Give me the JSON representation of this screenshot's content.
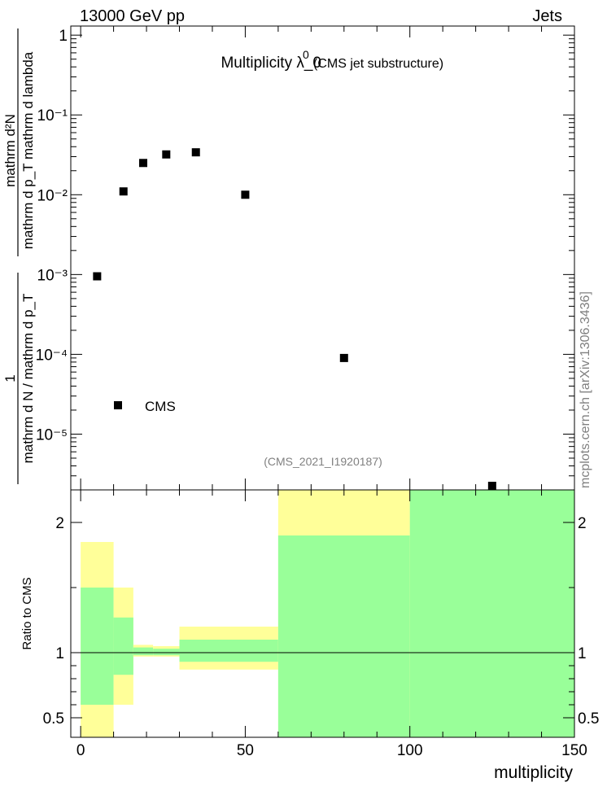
{
  "header": {
    "left": "13000 GeV pp",
    "right": "Jets"
  },
  "colors": {
    "green_band": "#99ff99",
    "yellow_band": "#ffff99",
    "marker": "#000000",
    "ref_text": "#808080"
  },
  "chart_data": [
    {
      "type": "scatter",
      "title_main": "Multiplicity  λ_0",
      "title_sup": "0",
      "title_sub": "(CMS jet substructure)",
      "ylabel_num": "mathrm d²N",
      "ylabel_den": "mathrm d p_T mathrm d lambda",
      "ylabel_left_num": "1",
      "ylabel_left_den": "mathrm d N / mathrm d p_T",
      "yscale": "log",
      "ylim": [
        2e-06,
        1.3
      ],
      "xlim": [
        -3,
        150
      ],
      "y_ticks": [
        "1",
        "10⁻¹",
        "10⁻²",
        "10⁻³",
        "10⁻⁴",
        "10⁻⁵"
      ],
      "legend": "CMS",
      "legend_position": "bottom-left",
      "reference": "(CMS_2021_I1920187)",
      "side_label": "mcplots.cern.ch [arXiv:1306.3436]",
      "series": [
        {
          "name": "CMS",
          "x": [
            5,
            13,
            19,
            26,
            35,
            50,
            80,
            125
          ],
          "y": [
            0.00095,
            0.011,
            0.025,
            0.032,
            0.034,
            0.01,
            9e-05,
            1.5e-06
          ]
        }
      ]
    },
    {
      "type": "area",
      "ylabel": "Ratio to CMS",
      "xlabel": "multiplicity",
      "ylim": [
        0.35,
        2.25
      ],
      "xlim": [
        -3,
        150
      ],
      "x_ticks": [
        "0",
        "50",
        "100",
        "150"
      ],
      "y_ticks": [
        "0.5",
        "1",
        "2"
      ],
      "bins": [
        {
          "x0": 0,
          "x1": 10,
          "g_lo": 0.6,
          "g_hi": 1.5,
          "y_lo": 0.35,
          "y_hi": 1.85
        },
        {
          "x0": 10,
          "x1": 16,
          "g_lo": 0.83,
          "g_hi": 1.27,
          "y_lo": 0.6,
          "y_hi": 1.5
        },
        {
          "x0": 16,
          "x1": 22,
          "g_lo": 0.98,
          "g_hi": 1.04,
          "y_lo": 0.97,
          "y_hi": 1.06
        },
        {
          "x0": 22,
          "x1": 30,
          "g_lo": 0.98,
          "g_hi": 1.03,
          "y_lo": 0.97,
          "y_hi": 1.05
        },
        {
          "x0": 30,
          "x1": 60,
          "g_lo": 0.93,
          "g_hi": 1.1,
          "y_lo": 0.87,
          "y_hi": 1.2
        },
        {
          "x0": 60,
          "x1": 100,
          "g_lo": 0.35,
          "g_hi": 1.9,
          "y_lo": 0.35,
          "y_hi": 2.25
        },
        {
          "x0": 100,
          "x1": 150,
          "g_lo": 0.35,
          "g_hi": 2.25,
          "y_lo": 0.35,
          "y_hi": 2.25
        }
      ]
    }
  ]
}
